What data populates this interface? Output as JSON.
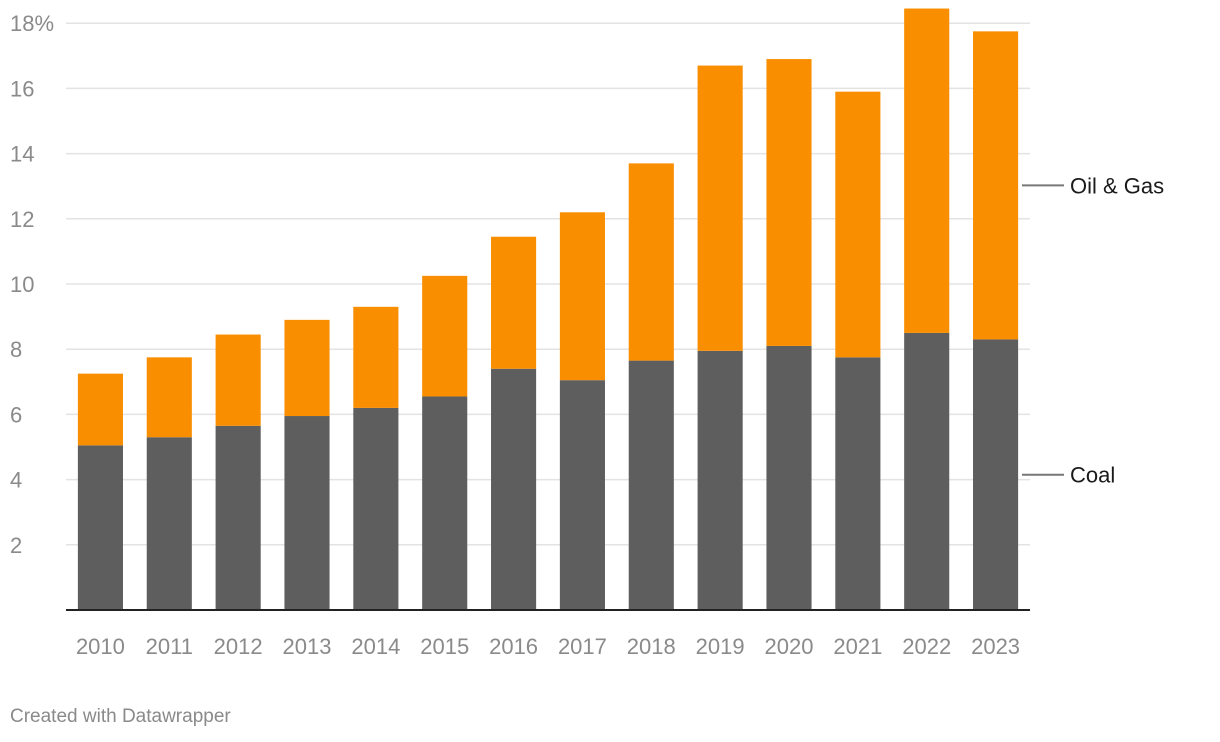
{
  "chart_data": {
    "type": "bar",
    "stacked": true,
    "categories": [
      "2010",
      "2011",
      "2012",
      "2013",
      "2014",
      "2015",
      "2016",
      "2017",
      "2018",
      "2019",
      "2020",
      "2021",
      "2022",
      "2023"
    ],
    "series": [
      {
        "name": "Coal",
        "color": "#5e5e5e",
        "values": [
          5.05,
          5.3,
          5.65,
          5.95,
          6.2,
          6.55,
          7.4,
          7.05,
          7.65,
          7.95,
          8.1,
          7.75,
          8.5,
          8.3
        ]
      },
      {
        "name": "Oil & Gas",
        "color": "#f98e00",
        "values": [
          2.2,
          2.45,
          2.8,
          2.95,
          3.1,
          3.7,
          4.05,
          5.15,
          6.05,
          8.75,
          8.8,
          8.15,
          9.95,
          9.45
        ]
      }
    ],
    "y_ticks": [
      {
        "value": 18,
        "label": "18%"
      },
      {
        "value": 16,
        "label": "16"
      },
      {
        "value": 14,
        "label": "14"
      },
      {
        "value": 12,
        "label": "12"
      },
      {
        "value": 10,
        "label": "10"
      },
      {
        "value": 8,
        "label": "8"
      },
      {
        "value": 6,
        "label": "6"
      },
      {
        "value": 4,
        "label": "4"
      },
      {
        "value": 2,
        "label": "2"
      }
    ],
    "ylim": [
      0,
      18.8
    ],
    "grid": true,
    "legend": "direct labels on right",
    "title": "",
    "xlabel": "",
    "ylabel": ""
  },
  "credit": "Created with Datawrapper"
}
